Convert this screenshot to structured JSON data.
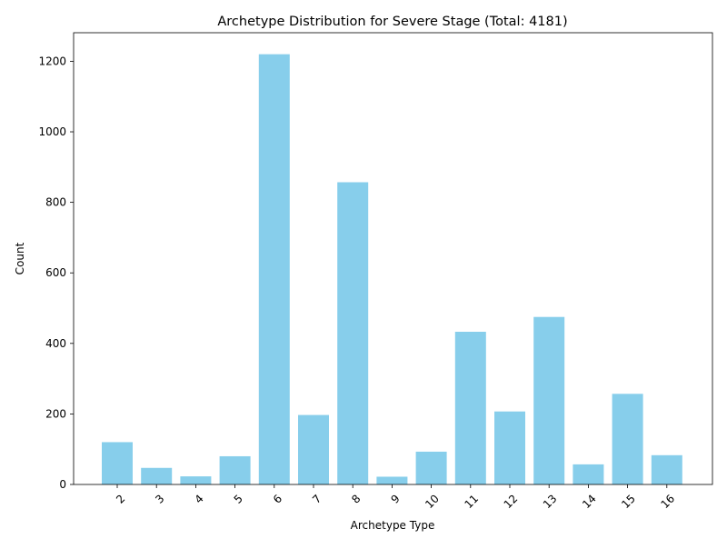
{
  "chart_data": {
    "type": "bar",
    "title": "Archetype Distribution for Severe Stage (Total: 4181)",
    "xlabel": "Archetype Type",
    "ylabel": "Count",
    "categories": [
      "2",
      "3",
      "4",
      "5",
      "6",
      "7",
      "8",
      "9",
      "10",
      "11",
      "12",
      "13",
      "14",
      "15",
      "16"
    ],
    "values": [
      120,
      47,
      23,
      80,
      1220,
      197,
      857,
      22,
      93,
      433,
      207,
      475,
      57,
      257,
      83
    ],
    "ylim": [
      0,
      1281
    ],
    "yticks": [
      0,
      200,
      400,
      600,
      800,
      1000,
      1200
    ],
    "bar_color": "#87ceeb",
    "grid": false,
    "legend": "none"
  }
}
